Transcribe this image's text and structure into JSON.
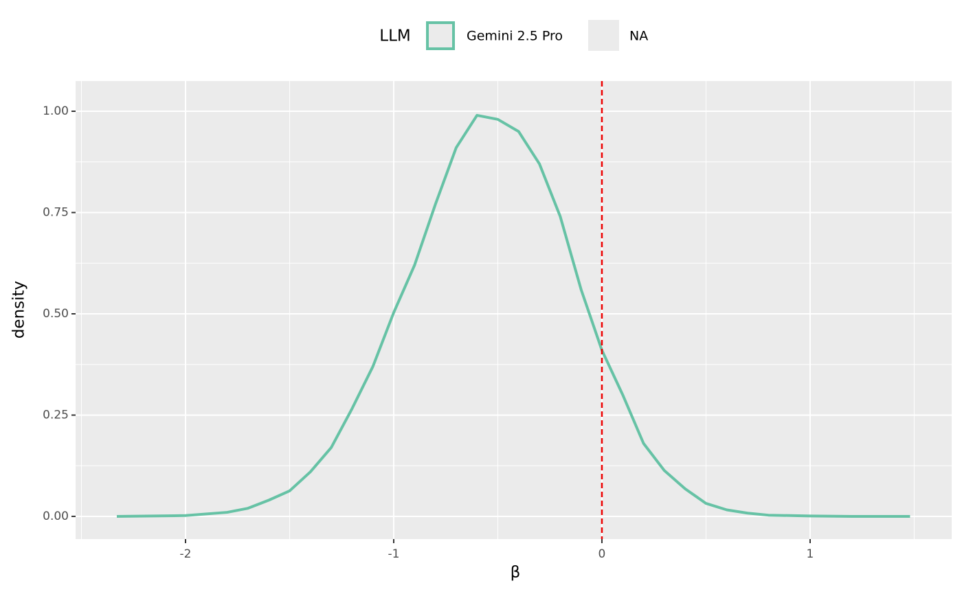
{
  "chart_data": {
    "type": "density",
    "x_label": "β",
    "y_label": "density",
    "xlim": [
      -2.528,
      1.68
    ],
    "ylim": [
      -0.056,
      1.0746
    ],
    "xticks": [
      -2,
      -1,
      0,
      1
    ],
    "yticks": [
      {
        "value": 0,
        "label": "0.00"
      },
      {
        "value": 0.25,
        "label": "0.25"
      },
      {
        "value": 0.5,
        "label": "0.50"
      },
      {
        "value": 0.75,
        "label": "0.75"
      },
      {
        "value": 1,
        "label": "1.00"
      }
    ],
    "x_minor_grid": [
      -2.5,
      -1.5,
      -0.5,
      0.5,
      1.5
    ],
    "y_minor_grid": [
      0.125,
      0.375,
      0.625,
      0.875
    ],
    "grid": true,
    "legend": {
      "title": "LLM",
      "position": "top",
      "extra_entry": "NA"
    },
    "vline": {
      "x": 0,
      "color": "#ee0000",
      "dashed": true
    },
    "series": [
      {
        "name": "Gemini 2.5 Pro",
        "color": "#66c2a5",
        "x": [
          -2.33,
          -2.0,
          -1.8,
          -1.7,
          -1.6,
          -1.5,
          -1.4,
          -1.3,
          -1.2,
          -1.1,
          -1.0,
          -0.9,
          -0.8,
          -0.7,
          -0.6,
          -0.5,
          -0.4,
          -0.3,
          -0.2,
          -0.1,
          0,
          0.1,
          0.2,
          0.3,
          0.4,
          0.5,
          0.6,
          0.7,
          0.8,
          1.0,
          1.2,
          1.48
        ],
        "values": [
          0,
          0.002,
          0.01,
          0.02,
          0.04,
          0.063,
          0.11,
          0.17,
          0.266,
          0.37,
          0.503,
          0.62,
          0.77,
          0.91,
          0.99,
          0.98,
          0.95,
          0.87,
          0.74,
          0.56,
          0.41,
          0.3,
          0.18,
          0.113,
          0.068,
          0.032,
          0.016,
          0.008,
          0.003,
          0.001,
          0,
          0
        ]
      }
    ]
  }
}
